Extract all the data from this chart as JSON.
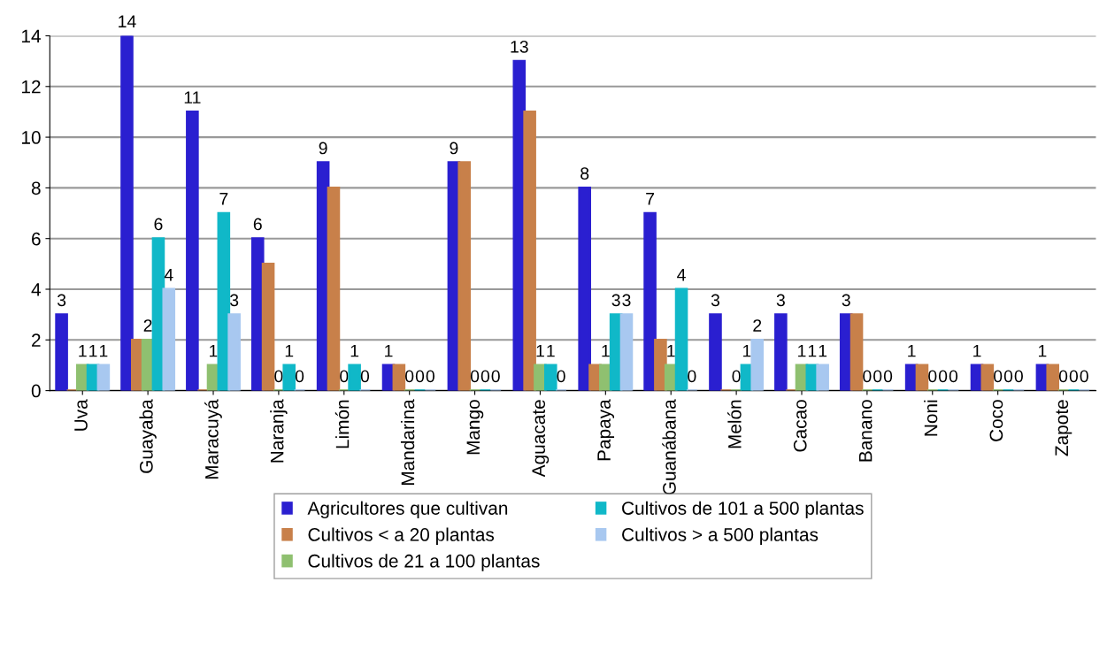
{
  "chart_data": {
    "type": "bar",
    "categories": [
      "Uva",
      "Guayaba",
      "Maracuyá",
      "Naranja",
      "Limón",
      "Mandarina",
      "Mango",
      "Aguacate",
      "Papaya",
      "Guanábana",
      "Melón",
      "Cacao",
      "Banano",
      "Noni",
      "Coco",
      "Zapote"
    ],
    "series": [
      {
        "name": "Agricultores que cultivan",
        "color": "#2a1fd0",
        "values": [
          3,
          14,
          11,
          6,
          9,
          1,
          9,
          13,
          8,
          7,
          3,
          3,
          3,
          1,
          1,
          1
        ],
        "data_labels": true
      },
      {
        "name": "Cultivos < a 20 plantas",
        "color": "#c8804a",
        "values": [
          0,
          2,
          0,
          5,
          8,
          1,
          9,
          11,
          1,
          2,
          0,
          0,
          3,
          1,
          1,
          1
        ]
      },
      {
        "name": "Cultivos de 21 a 100 plantas",
        "color": "#8fc070",
        "values": [
          1,
          2,
          1,
          0,
          0,
          0,
          0,
          1,
          1,
          1,
          0,
          1,
          0,
          0,
          0,
          0
        ],
        "data_labels": true
      },
      {
        "name": "Cultivos de 101 a 500 plantas",
        "color": "#10b8c8",
        "values": [
          1,
          6,
          7,
          1,
          1,
          0,
          0,
          1,
          3,
          4,
          1,
          1,
          0,
          0,
          0,
          0
        ],
        "data_labels": true
      },
      {
        "name": "Cultivos > a 500 plantas",
        "color": "#a8c8f0",
        "values": [
          1,
          4,
          3,
          0,
          0,
          0,
          0,
          0,
          3,
          0,
          2,
          1,
          0,
          0,
          0,
          0
        ],
        "data_labels": true
      }
    ],
    "ylim": [
      0,
      14
    ],
    "yticks": [
      0,
      2,
      4,
      6,
      8,
      10,
      12,
      14
    ],
    "grid": "y",
    "legend": "bottom"
  }
}
